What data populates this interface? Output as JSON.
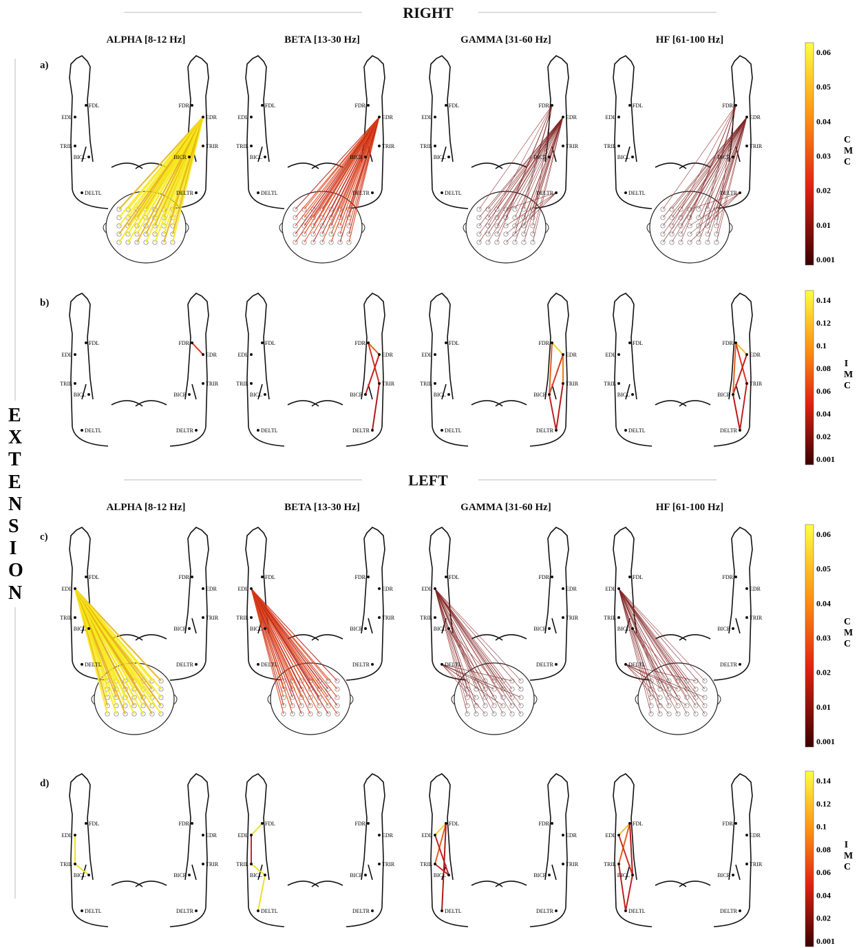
{
  "sections": [
    {
      "title": "RIGHT",
      "rows": [
        {
          "label": "a)"
        },
        {
          "label": "b)"
        }
      ]
    },
    {
      "title": "LEFT",
      "rows": [
        {
          "label": "c)"
        },
        {
          "label": "d)"
        }
      ]
    }
  ],
  "columns": [
    "ALPHA [8-12 Hz]",
    "BETA [13-30 Hz]",
    "GAMMA [31-60 Hz]",
    "HF [61-100 Hz]"
  ],
  "side_label": "EXTENSION",
  "muscles": {
    "left": [
      "FDL",
      "EDL",
      "TRIL",
      "BICL",
      "DELTL"
    ],
    "right": [
      "FDR",
      "EDR",
      "TRIR",
      "BICR",
      "DELTR"
    ]
  },
  "colorbars": [
    {
      "label": "CMC",
      "ticks": [
        "0.06",
        "0.05",
        "0.04",
        "0.03",
        "0.02",
        "0.01",
        "0.001"
      ]
    },
    {
      "label": "IMC",
      "ticks": [
        "0.14",
        "0.12",
        "0.1",
        "0.08",
        "0.06",
        "0.04",
        "0.02",
        "0.001"
      ]
    }
  ]
}
